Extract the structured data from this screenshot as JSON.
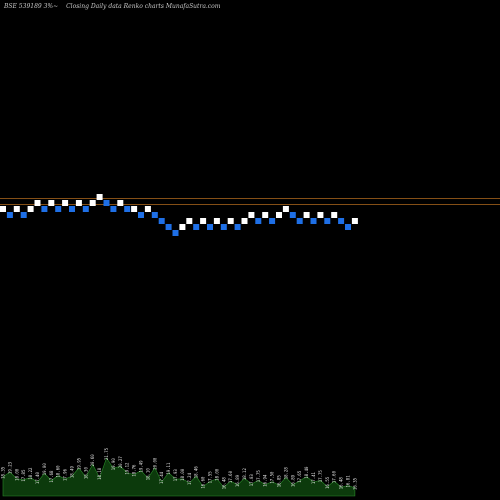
{
  "header": {
    "symbol": "BSE 539189 3%~",
    "subtitle": "Closing Daily data Renko charts MunafaSutra.com"
  },
  "colors": {
    "background": "#000000",
    "up_brick": "#ffffff",
    "down_brick": "#1e6fe6",
    "ref_line": "#b06a1e",
    "volume_fill": "#0c3a0c",
    "volume_stroke": "#2a8a2a"
  },
  "chart_data": {
    "type": "renko",
    "reference_levels": [
      1,
      2
    ],
    "bricks": [
      {
        "level": 0,
        "dir": "up"
      },
      {
        "level": -1,
        "dir": "down"
      },
      {
        "level": 0,
        "dir": "up"
      },
      {
        "level": -1,
        "dir": "down"
      },
      {
        "level": 0,
        "dir": "up"
      },
      {
        "level": 1,
        "dir": "up"
      },
      {
        "level": 0,
        "dir": "down"
      },
      {
        "level": 1,
        "dir": "up"
      },
      {
        "level": 0,
        "dir": "down"
      },
      {
        "level": 1,
        "dir": "up"
      },
      {
        "level": 0,
        "dir": "down"
      },
      {
        "level": 1,
        "dir": "up"
      },
      {
        "level": 0,
        "dir": "down"
      },
      {
        "level": 1,
        "dir": "up"
      },
      {
        "level": 2,
        "dir": "up"
      },
      {
        "level": 1,
        "dir": "down"
      },
      {
        "level": 0,
        "dir": "down"
      },
      {
        "level": 1,
        "dir": "up"
      },
      {
        "level": 0,
        "dir": "down"
      },
      {
        "level": 0,
        "dir": "up"
      },
      {
        "level": -1,
        "dir": "down"
      },
      {
        "level": 0,
        "dir": "up"
      },
      {
        "level": -1,
        "dir": "down"
      },
      {
        "level": -2,
        "dir": "down"
      },
      {
        "level": -3,
        "dir": "down"
      },
      {
        "level": -4,
        "dir": "down"
      },
      {
        "level": -3,
        "dir": "up"
      },
      {
        "level": -2,
        "dir": "up"
      },
      {
        "level": -3,
        "dir": "down"
      },
      {
        "level": -2,
        "dir": "up"
      },
      {
        "level": -3,
        "dir": "down"
      },
      {
        "level": -2,
        "dir": "up"
      },
      {
        "level": -3,
        "dir": "down"
      },
      {
        "level": -2,
        "dir": "up"
      },
      {
        "level": -3,
        "dir": "down"
      },
      {
        "level": -2,
        "dir": "up"
      },
      {
        "level": -1,
        "dir": "up"
      },
      {
        "level": -2,
        "dir": "down"
      },
      {
        "level": -1,
        "dir": "up"
      },
      {
        "level": -2,
        "dir": "down"
      },
      {
        "level": -1,
        "dir": "up"
      },
      {
        "level": 0,
        "dir": "up"
      },
      {
        "level": -1,
        "dir": "down"
      },
      {
        "level": -2,
        "dir": "down"
      },
      {
        "level": -1,
        "dir": "up"
      },
      {
        "level": -2,
        "dir": "down"
      },
      {
        "level": -1,
        "dir": "up"
      },
      {
        "level": -2,
        "dir": "down"
      },
      {
        "level": -1,
        "dir": "up"
      },
      {
        "level": -2,
        "dir": "down"
      },
      {
        "level": -3,
        "dir": "down"
      },
      {
        "level": -2,
        "dir": "up"
      }
    ],
    "volume_labels": [
      "18.35",
      "19.23",
      "18.00",
      "17.85",
      "18.22",
      "17.40",
      "19.00",
      "17.68",
      "18.60",
      "17.96",
      "18.49",
      "19.95",
      "18.30",
      "20.60",
      "18.18",
      "21.75",
      "19.90",
      "20.27",
      "19.12",
      "18.76",
      "19.49",
      "18.10",
      "20.00",
      "17.44",
      "19.11",
      "17.93",
      "18.00",
      "17.24",
      "18.46",
      "16.60",
      "17.55",
      "18.00",
      "16.48",
      "17.60",
      "16.89",
      "18.12",
      "17.03",
      "17.75",
      "16.94",
      "17.50",
      "16.85",
      "18.28",
      "16.89",
      "17.65",
      "18.40",
      "17.41",
      "17.75",
      "16.55",
      "17.60",
      "16.48",
      "16.81",
      "16.35"
    ]
  }
}
